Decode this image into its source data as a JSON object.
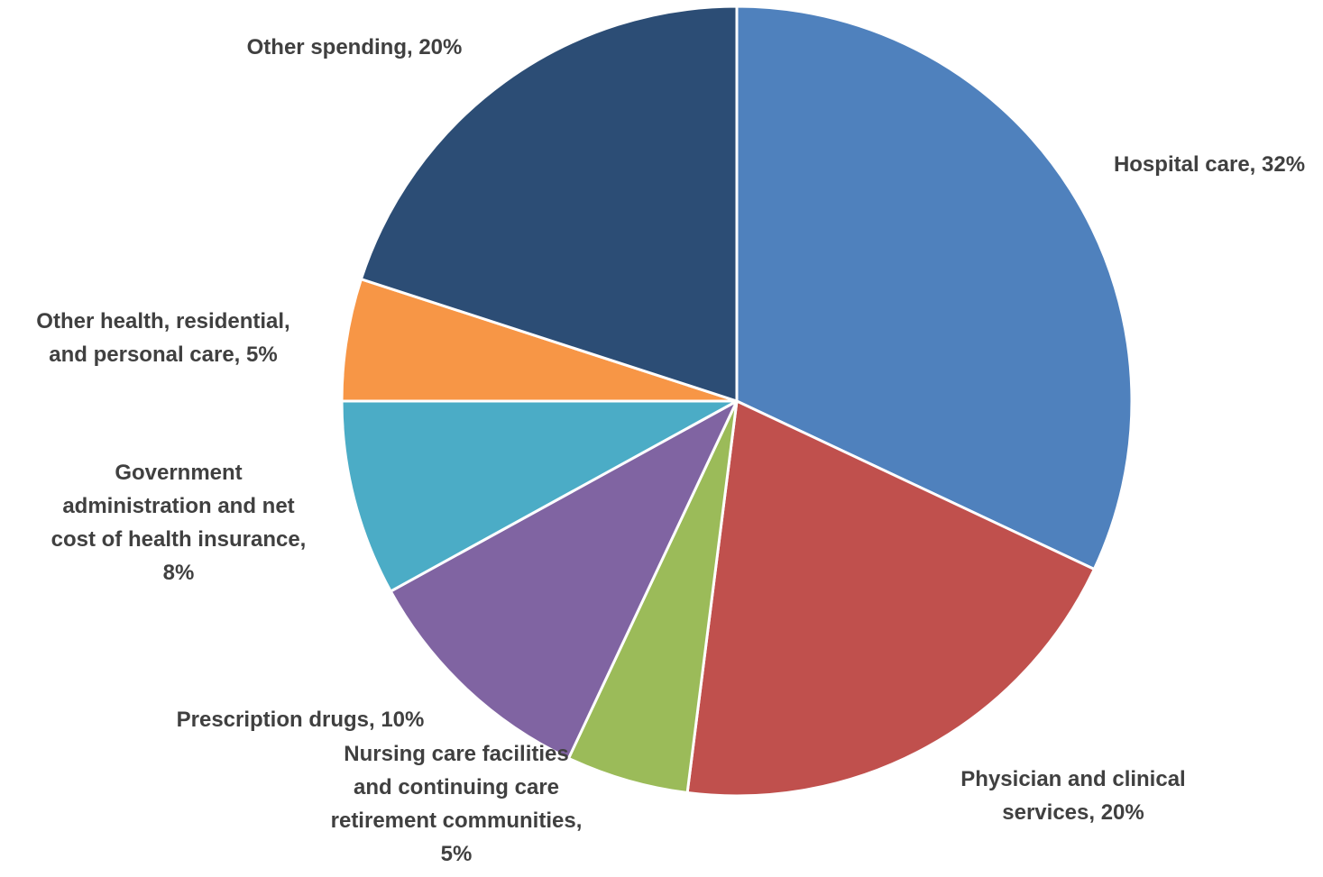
{
  "chart_data": {
    "type": "pie",
    "title": "",
    "start_angle_deg": 0,
    "direction": "clockwise",
    "slices": [
      {
        "label": "Hospital care",
        "value": 32,
        "display": "32%",
        "color": "#4F81BD"
      },
      {
        "label": "Physician and clinical services",
        "value": 20,
        "display": "20%",
        "color": "#C0504D"
      },
      {
        "label": "Nursing care facilities and continuing care retirement communities",
        "value": 5,
        "display": "5%",
        "color": "#9BBB59"
      },
      {
        "label": "Prescription drugs",
        "value": 10,
        "display": "10%",
        "color": "#8064A2"
      },
      {
        "label": "Government administration and net cost of health insurance",
        "value": 8,
        "display": "8%",
        "color": "#4BACC6"
      },
      {
        "label": "Other health, residential, and personal care",
        "value": 5,
        "display": "5%",
        "color": "#F79646"
      },
      {
        "label": "Other spending",
        "value": 20,
        "display": "20%",
        "color": "#2C4D75"
      }
    ],
    "data_labels": [
      {
        "lines": [
          "Hospital care, 32%"
        ]
      },
      {
        "lines": [
          "Physician and clinical",
          "services, 20%"
        ]
      },
      {
        "lines": [
          "Nursing care facilities",
          "and continuing care",
          "retirement communities,",
          "5%"
        ]
      },
      {
        "lines": [
          "Prescription drugs, 10%"
        ]
      },
      {
        "lines": [
          "Government",
          "administration and net",
          "cost of health insurance,",
          "8%"
        ]
      },
      {
        "lines": [
          "Other health, residential,",
          "and personal care, 5%"
        ]
      },
      {
        "lines": [
          "Other spending, 20%"
        ]
      }
    ],
    "legend": "none"
  }
}
